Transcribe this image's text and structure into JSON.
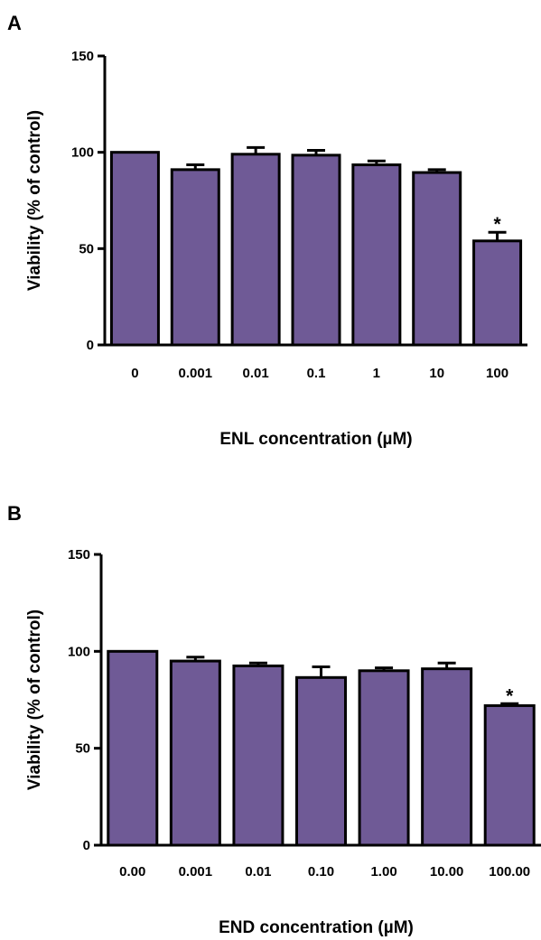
{
  "chart_data": [
    {
      "type": "bar",
      "panel_label": "A",
      "title": "",
      "xlabel": "ENL concentration (µM)",
      "ylabel": "Viability (% of control)",
      "categories": [
        "0",
        "0.001",
        "0.01",
        "0.1",
        "1",
        "10",
        "100"
      ],
      "values": [
        100,
        91,
        99,
        98.5,
        93.5,
        89.5,
        54
      ],
      "error_bars": [
        0,
        2.5,
        3.5,
        2.5,
        2,
        1.5,
        4.5
      ],
      "annotations": [
        "",
        "",
        "",
        "",
        "",
        "",
        "*"
      ],
      "ylim": [
        0,
        150
      ],
      "y_ticks": [
        "0",
        "50",
        "100",
        "150"
      ],
      "y_tick_values": [
        0,
        50,
        100,
        150
      ],
      "bar_color": "#6f5a96",
      "grid": false,
      "legend": "none"
    },
    {
      "type": "bar",
      "panel_label": "B",
      "title": "",
      "xlabel": "END concentration (µM)",
      "ylabel": "Viability (% of control)",
      "categories": [
        "0.00",
        "0.001",
        "0.01",
        "0.10",
        "1.00",
        "10.00",
        "100.00"
      ],
      "values": [
        100,
        95,
        92.5,
        86.5,
        90,
        91,
        72
      ],
      "error_bars": [
        0,
        2,
        1.5,
        5.5,
        1.5,
        3,
        1
      ],
      "annotations": [
        "",
        "",
        "",
        "",
        "",
        "",
        "*"
      ],
      "ylim": [
        0,
        150
      ],
      "y_ticks": [
        "0",
        "50",
        "100",
        "150"
      ],
      "y_tick_values": [
        0,
        50,
        100,
        150
      ],
      "bar_color": "#6f5a96",
      "grid": false,
      "legend": "none"
    }
  ]
}
